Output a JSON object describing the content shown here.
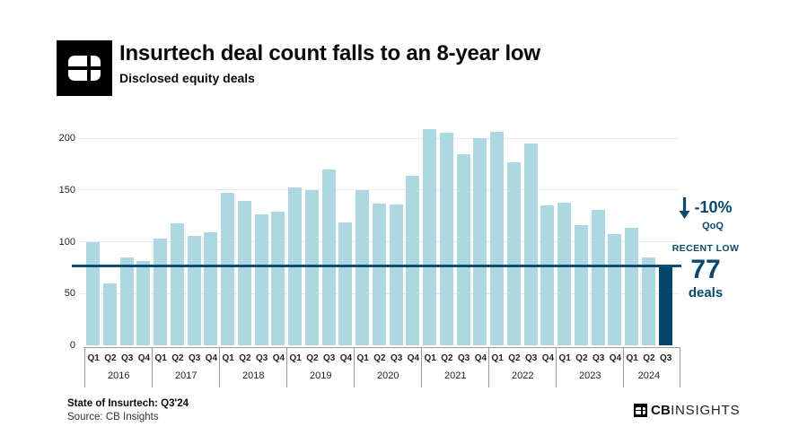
{
  "header": {
    "title": "Insurtech deal count falls to an 8-year low",
    "subtitle": "Disclosed equity deals"
  },
  "chart_data": {
    "type": "bar",
    "title": "Insurtech deal count falls to an 8-year low",
    "subtitle": "Disclosed equity deals",
    "xlabel": "",
    "ylabel": "",
    "ylim": [
      0,
      215
    ],
    "yticks": [
      0,
      50,
      100,
      150,
      200
    ],
    "grid": true,
    "years": [
      {
        "label": "2016",
        "quarters": [
          "Q1",
          "Q2",
          "Q3",
          "Q4"
        ]
      },
      {
        "label": "2017",
        "quarters": [
          "Q1",
          "Q2",
          "Q3",
          "Q4"
        ]
      },
      {
        "label": "2018",
        "quarters": [
          "Q1",
          "Q2",
          "Q3",
          "Q4"
        ]
      },
      {
        "label": "2019",
        "quarters": [
          "Q1",
          "Q2",
          "Q3",
          "Q4"
        ]
      },
      {
        "label": "2020",
        "quarters": [
          "Q1",
          "Q2",
          "Q3",
          "Q4"
        ]
      },
      {
        "label": "2021",
        "quarters": [
          "Q1",
          "Q2",
          "Q3",
          "Q4"
        ]
      },
      {
        "label": "2022",
        "quarters": [
          "Q1",
          "Q2",
          "Q3",
          "Q4"
        ]
      },
      {
        "label": "2023",
        "quarters": [
          "Q1",
          "Q2",
          "Q3",
          "Q4"
        ]
      },
      {
        "label": "2024",
        "quarters": [
          "Q1",
          "Q2",
          "Q3"
        ]
      }
    ],
    "series": [
      {
        "name": "Disclosed equity deals",
        "values": [
          100,
          60,
          85,
          81,
          103,
          118,
          106,
          109,
          147,
          139,
          126,
          129,
          152,
          150,
          170,
          119,
          150,
          137,
          136,
          164,
          209,
          205,
          184,
          200,
          206,
          177,
          195,
          135,
          138,
          116,
          131,
          107,
          113,
          85,
          77
        ]
      }
    ],
    "highlight_index": 34,
    "reference_line": {
      "value": 77,
      "label": "RECENT LOW"
    }
  },
  "annotations": {
    "qoq_change": "-10%",
    "qoq_label": "QoQ",
    "down_arrow_icon": "down-arrow",
    "recent_low_label": "RECENT LOW",
    "recent_low_value": "77",
    "recent_low_unit": "deals"
  },
  "footer": {
    "report": "State of Insurtech: Q3'24",
    "source": "Source: CB Insights",
    "brand_cb": "CB",
    "brand_insights": "INSIGHTS"
  },
  "colors": {
    "bar": "#ADD8E1",
    "highlight_bar": "#05466A",
    "reference_line": "#0D4D6F",
    "accent_navy": "#074A6E",
    "grid": "#E9E9E9",
    "axis": "#9A9A9A"
  }
}
